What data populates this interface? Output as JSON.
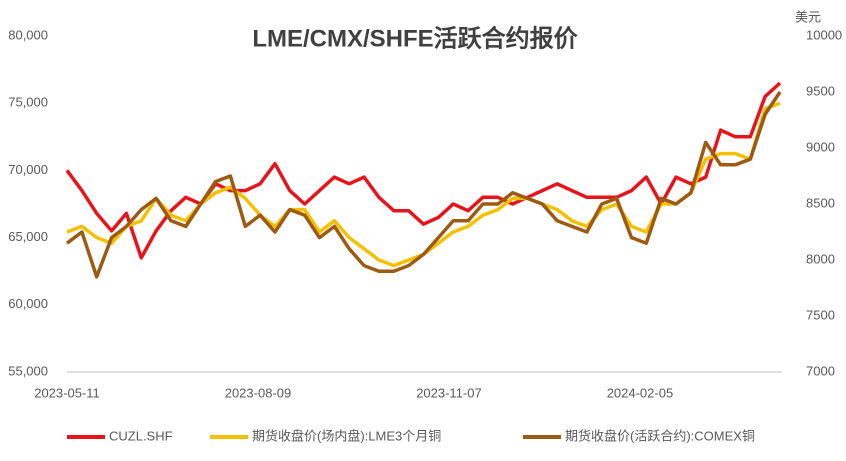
{
  "chart_data": {
    "type": "line",
    "title": "LME/CMX/SHFE活跃合约报价",
    "y2_label": "美元",
    "x": [
      "2023-05-11",
      "2023-05-18",
      "2023-05-25",
      "2023-06-01",
      "2023-06-08",
      "2023-06-15",
      "2023-06-22",
      "2023-06-29",
      "2023-07-06",
      "2023-07-13",
      "2023-07-20",
      "2023-07-27",
      "2023-08-03",
      "2023-08-10",
      "2023-08-17",
      "2023-08-24",
      "2023-08-31",
      "2023-09-07",
      "2023-09-14",
      "2023-09-21",
      "2023-09-28",
      "2023-10-05",
      "2023-10-12",
      "2023-10-19",
      "2023-10-26",
      "2023-11-02",
      "2023-11-09",
      "2023-11-16",
      "2023-11-23",
      "2023-11-30",
      "2023-12-07",
      "2023-12-14",
      "2023-12-21",
      "2023-12-28",
      "2024-01-04",
      "2024-01-11",
      "2024-01-18",
      "2024-01-25",
      "2024-02-01",
      "2024-02-08",
      "2024-02-15",
      "2024-02-22",
      "2024-02-29",
      "2024-03-07",
      "2024-03-14",
      "2024-03-21",
      "2024-03-28",
      "2024-04-04",
      "2024-04-11"
    ],
    "xlim": [
      "2023-05-11",
      "2024-04-11"
    ],
    "xticks": [
      "2023-05-11",
      "2023-08-09",
      "2023-11-07",
      "2024-02-05"
    ],
    "ylim": [
      55000,
      80000
    ],
    "yticks": [
      {
        "value": 55000,
        "label": "55,000"
      },
      {
        "value": 60000,
        "label": "60,000"
      },
      {
        "value": 65000,
        "label": "65,000"
      },
      {
        "value": 70000,
        "label": "70,000"
      },
      {
        "value": 75000,
        "label": "75,000"
      },
      {
        "value": 80000,
        "label": "80,000"
      }
    ],
    "y2lim": [
      7000,
      10000
    ],
    "y2ticks": [
      7000,
      7500,
      8000,
      8500,
      9000,
      9500,
      10000
    ],
    "series": [
      {
        "name": "CUZL.SHF",
        "color": "#e8141b",
        "values": [
          70000,
          68500,
          66800,
          65500,
          66800,
          63500,
          65500,
          67000,
          68000,
          67500,
          69000,
          68500,
          68500,
          69000,
          70500,
          68500,
          67500,
          68500,
          69500,
          69000,
          69500,
          68000,
          67000,
          67000,
          66000,
          66500,
          67500,
          67000,
          68000,
          68000,
          67500,
          68000,
          68500,
          69000,
          68500,
          68000,
          68000,
          68000,
          68500,
          69500,
          67500,
          69500,
          69000,
          69500,
          73000,
          72500,
          72500,
          75500,
          76500
        ]
      },
      {
        "name": "期货收盘价(场内盘):LME3个月铜",
        "color": "#f5c000",
        "axis": "y2",
        "values": [
          8250,
          8300,
          8200,
          8150,
          8300,
          8350,
          8550,
          8400,
          8350,
          8500,
          8600,
          8650,
          8550,
          8400,
          8300,
          8450,
          8450,
          8250,
          8350,
          8200,
          8100,
          8000,
          7950,
          8000,
          8050,
          8150,
          8250,
          8300,
          8400,
          8450,
          8550,
          8550,
          8500,
          8450,
          8350,
          8300,
          8450,
          8500,
          8300,
          8250,
          8500,
          8500,
          8600,
          8900,
          8950,
          8950,
          8900,
          9350,
          9400
        ]
      },
      {
        "name": "期货收盘价(活跃合约):COMEX铜",
        "color": "#9c5a12",
        "axis": "y2",
        "values": [
          8150,
          8250,
          7850,
          8200,
          8300,
          8450,
          8550,
          8350,
          8300,
          8500,
          8700,
          8750,
          8300,
          8400,
          8250,
          8450,
          8400,
          8200,
          8300,
          8100,
          7950,
          7900,
          7900,
          7950,
          8050,
          8200,
          8350,
          8350,
          8500,
          8500,
          8600,
          8550,
          8500,
          8350,
          8300,
          8250,
          8500,
          8550,
          8200,
          8150,
          8550,
          8500,
          8600,
          9050,
          8850,
          8850,
          8900,
          9300,
          9500
        ]
      }
    ]
  }
}
